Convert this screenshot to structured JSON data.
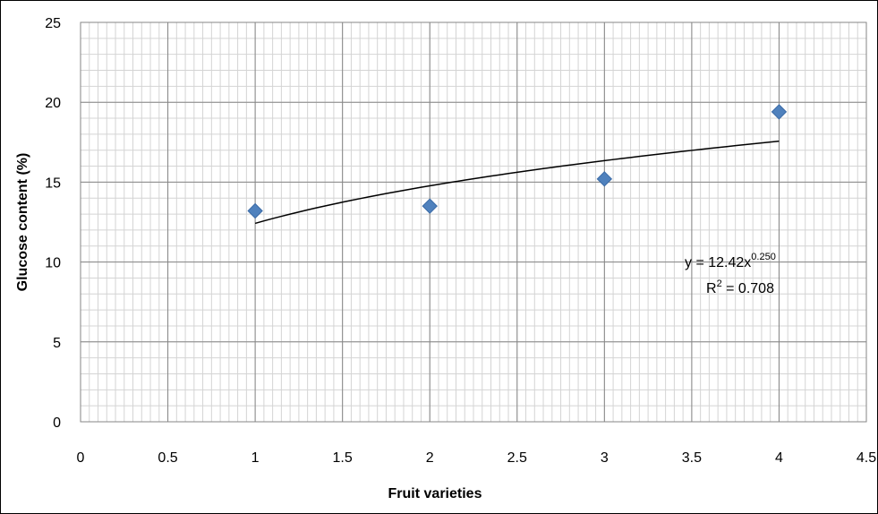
{
  "chart_data": {
    "type": "scatter",
    "title": "",
    "xlabel": "Fruit varieties",
    "ylabel": "Glucose content (%)",
    "xlim": [
      0,
      4.5
    ],
    "ylim": [
      0,
      25
    ],
    "x_ticks": [
      "0",
      "0.5",
      "1",
      "1.5",
      "2",
      "2.5",
      "3",
      "3.5",
      "4",
      "4.5"
    ],
    "y_ticks": [
      "0",
      "5",
      "10",
      "15",
      "20",
      "25"
    ],
    "grid": true,
    "series": [
      {
        "marker": "diamond",
        "color": "#4F81BD",
        "points": [
          {
            "x": 1,
            "y": 13.2
          },
          {
            "x": 2,
            "y": 13.5
          },
          {
            "x": 3,
            "y": 15.2
          },
          {
            "x": 4,
            "y": 19.4
          }
        ]
      }
    ],
    "trendline": {
      "type": "power",
      "coefficient": 12.42,
      "exponent": 0.25,
      "x_range": [
        1,
        4
      ],
      "color": "#000000",
      "equation_text": {
        "prefix": "y = 12.42x",
        "exponent": "0.250",
        "r2_prefix": "R",
        "r2_sup": "2",
        "r2_suffix": " = 0.708"
      }
    }
  }
}
